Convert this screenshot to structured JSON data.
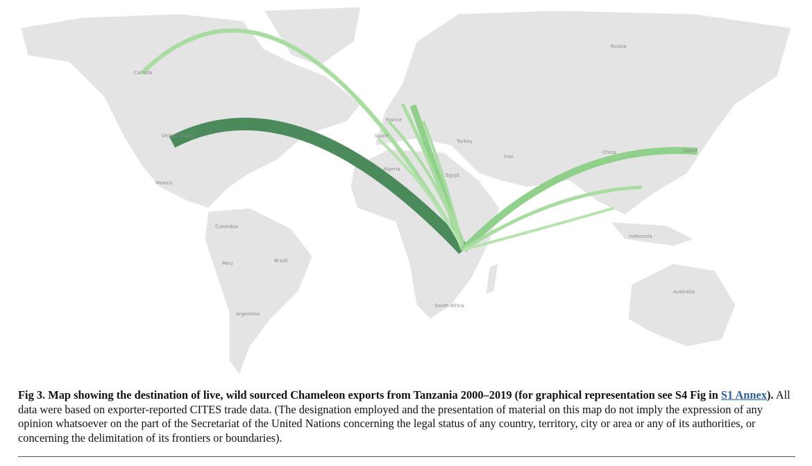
{
  "map": {
    "labels": [
      "Canada",
      "United States",
      "Mexico",
      "Colombia",
      "Peru",
      "Brazil",
      "Argentina",
      "France",
      "Spain",
      "Algeria",
      "Egypt",
      "Turkey",
      "Iran",
      "Russia",
      "China",
      "Japan",
      "Indonesia",
      "Australia",
      "South Africa"
    ]
  },
  "caption": {
    "label": "Fig 3.",
    "title": "Map showing the destination of live, wild sourced Chameleon exports from Tanzania 2000–2019 (for graphical representation see S4 Fig in ",
    "link": "S1 Annex",
    "title_end": ").",
    "body": "All data were based on exporter-reported CITES trade data. (The designation employed and the presentation of material on this map do not imply the expression of any opinion whatsoever on the part of the Secretariat of the United Nations concerning the legal status of any country, territory, city or area or any of its authorities, or concerning the delimitation of its frontiers or boundaries)."
  }
}
